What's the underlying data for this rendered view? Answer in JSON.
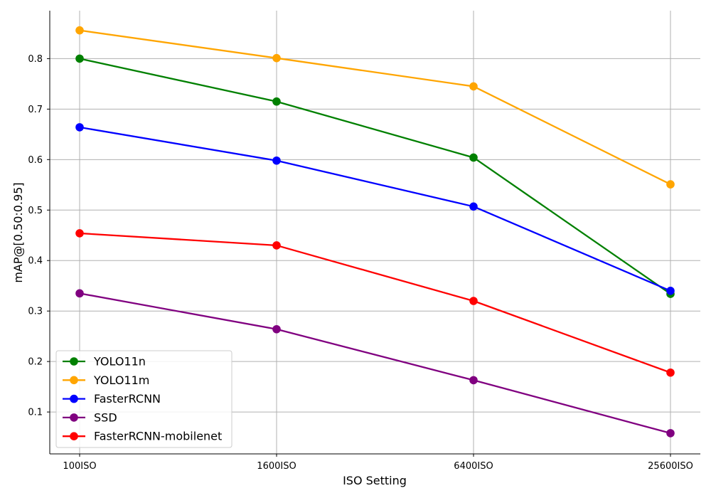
{
  "chart_data": {
    "type": "line",
    "title": "",
    "xlabel": "ISO Setting",
    "ylabel": "mAP@[0.50:0.95]",
    "categories": [
      "100ISO",
      "1600ISO",
      "6400ISO",
      "25600ISO"
    ],
    "ylim": [
      0.017,
      0.895
    ],
    "yticks": [
      0.1,
      0.2,
      0.3,
      0.4,
      0.5,
      0.6,
      0.7,
      0.8
    ],
    "ytick_labels": [
      "0.1",
      "0.2",
      "0.3",
      "0.4",
      "0.5",
      "0.6",
      "0.7",
      "0.8"
    ],
    "grid": true,
    "legend_position": "lower-left",
    "series": [
      {
        "name": "YOLO11n",
        "color": "#008000",
        "values": [
          0.8,
          0.715,
          0.604,
          0.334
        ]
      },
      {
        "name": "YOLO11m",
        "color": "#FFA500",
        "values": [
          0.856,
          0.801,
          0.745,
          0.551
        ]
      },
      {
        "name": "FasterRCNN",
        "color": "#0000FF",
        "values": [
          0.664,
          0.598,
          0.507,
          0.34
        ]
      },
      {
        "name": "SSD",
        "color": "#800080",
        "values": [
          0.335,
          0.264,
          0.163,
          0.058
        ]
      },
      {
        "name": "FasterRCNN-mobilenet",
        "color": "#FF0000",
        "values": [
          0.454,
          0.43,
          0.32,
          0.178
        ]
      }
    ]
  }
}
